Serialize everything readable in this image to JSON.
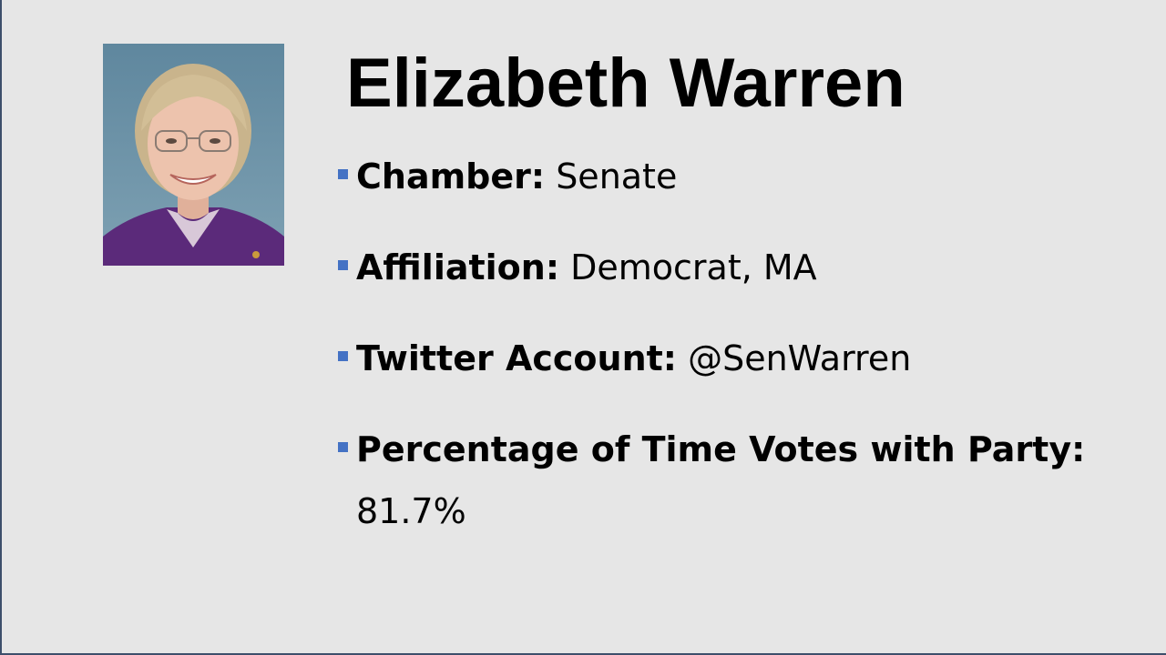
{
  "slide": {
    "title": "Elizabeth Warren",
    "facts": [
      {
        "label": "Chamber:",
        "value": "Senate"
      },
      {
        "label": "Affiliation:",
        "value": "Democrat, MA"
      },
      {
        "label": "Twitter Account:",
        "value": "@SenWarren"
      },
      {
        "label": "Percentage of Time Votes with Party:",
        "value": "81.7%"
      }
    ],
    "portrait": {
      "alt": "Elizabeth Warren"
    }
  },
  "colors": {
    "background": "#e6e6e6",
    "bullet": "#4472c4",
    "frame": "#3d4f6b",
    "text": "#000000"
  },
  "icons": {
    "bullet": "square-bullet-icon"
  }
}
